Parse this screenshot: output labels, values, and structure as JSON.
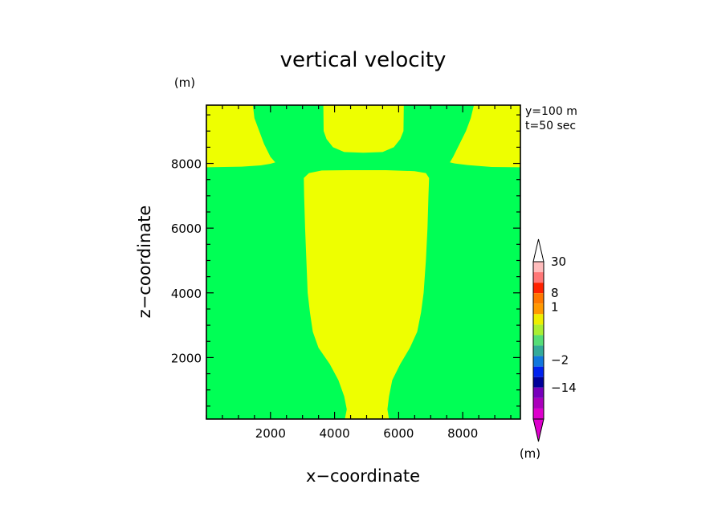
{
  "chart_data": {
    "type": "contour",
    "title": "vertical velocity",
    "xlabel": "x−coordinate",
    "ylabel": "z−coordinate",
    "y_unit": "(m)",
    "colorbar_unit": "(m)",
    "annotations": [
      "y=100 m",
      "t=50 sec"
    ],
    "xlim": [
      0,
      9800
    ],
    "ylim": [
      100,
      9800
    ],
    "x_ticks": [
      2000,
      4000,
      6000,
      8000
    ],
    "y_ticks": [
      2000,
      4000,
      6000,
      8000
    ],
    "x_tick_labels": [
      "2000",
      "4000",
      "6000",
      "8000"
    ],
    "y_tick_labels": [
      "2000",
      "4000",
      "6000",
      "8000"
    ],
    "background_level_color": "#00ff55",
    "region_color": "#eeff00",
    "regions": [
      {
        "name": "central-updraft",
        "outline": [
          [
            4320,
            100
          ],
          [
            4380,
            400
          ],
          [
            4300,
            800
          ],
          [
            4120,
            1300
          ],
          [
            3850,
            1800
          ],
          [
            3500,
            2300
          ],
          [
            3320,
            2800
          ],
          [
            3230,
            3400
          ],
          [
            3160,
            4000
          ],
          [
            3120,
            5000
          ],
          [
            3080,
            6000
          ],
          [
            3050,
            7000
          ],
          [
            3040,
            7550
          ],
          [
            3200,
            7700
          ],
          [
            3600,
            7780
          ],
          [
            4400,
            7790
          ],
          [
            5600,
            7790
          ],
          [
            6500,
            7760
          ],
          [
            6850,
            7700
          ],
          [
            6950,
            7550
          ],
          [
            6930,
            7000
          ],
          [
            6900,
            6000
          ],
          [
            6850,
            5000
          ],
          [
            6780,
            4000
          ],
          [
            6700,
            3400
          ],
          [
            6580,
            2800
          ],
          [
            6350,
            2300
          ],
          [
            6050,
            1800
          ],
          [
            5800,
            1300
          ],
          [
            5700,
            800
          ],
          [
            5650,
            400
          ],
          [
            5700,
            100
          ]
        ]
      },
      {
        "name": "upper-left-region",
        "outline": [
          [
            0,
            7880
          ],
          [
            1100,
            7900
          ],
          [
            1700,
            7940
          ],
          [
            2000,
            7990
          ],
          [
            2150,
            8030
          ],
          [
            2000,
            8200
          ],
          [
            1800,
            8600
          ],
          [
            1650,
            9000
          ],
          [
            1500,
            9400
          ],
          [
            1450,
            9800
          ],
          [
            0,
            9800
          ]
        ]
      },
      {
        "name": "upper-right-region",
        "outline": [
          [
            9800,
            7880
          ],
          [
            8900,
            7890
          ],
          [
            8150,
            7950
          ],
          [
            7750,
            8000
          ],
          [
            7600,
            8030
          ],
          [
            7700,
            8200
          ],
          [
            7900,
            8600
          ],
          [
            8100,
            9000
          ],
          [
            8250,
            9400
          ],
          [
            8350,
            9800
          ],
          [
            9800,
            9800
          ]
        ]
      },
      {
        "name": "upper-center-region",
        "outline": [
          [
            3650,
            9800
          ],
          [
            3660,
            9000
          ],
          [
            3750,
            8750
          ],
          [
            3950,
            8500
          ],
          [
            4300,
            8350
          ],
          [
            4900,
            8330
          ],
          [
            5500,
            8350
          ],
          [
            5850,
            8500
          ],
          [
            6050,
            8750
          ],
          [
            6150,
            9000
          ],
          [
            6160,
            9800
          ]
        ]
      }
    ],
    "colorbar": {
      "colors_top_to_bottom": [
        "#ffbcbc",
        "#ff7777",
        "#ff2200",
        "#ff7700",
        "#ff9900",
        "#eeee00",
        "#aaee33",
        "#55dd77",
        "#33aa99",
        "#1177dd",
        "#0022ee",
        "#000099",
        "#7700bb",
        "#aa00bb",
        "#dd00cc"
      ],
      "level_labels": [
        "30",
        "8",
        "1",
        "−2",
        "−14"
      ],
      "level_label_after_band": [
        0,
        3,
        5,
        9,
        12
      ],
      "triangle_top_color": "#ffffff",
      "triangle_bottom_color": "#dd00cc"
    }
  }
}
